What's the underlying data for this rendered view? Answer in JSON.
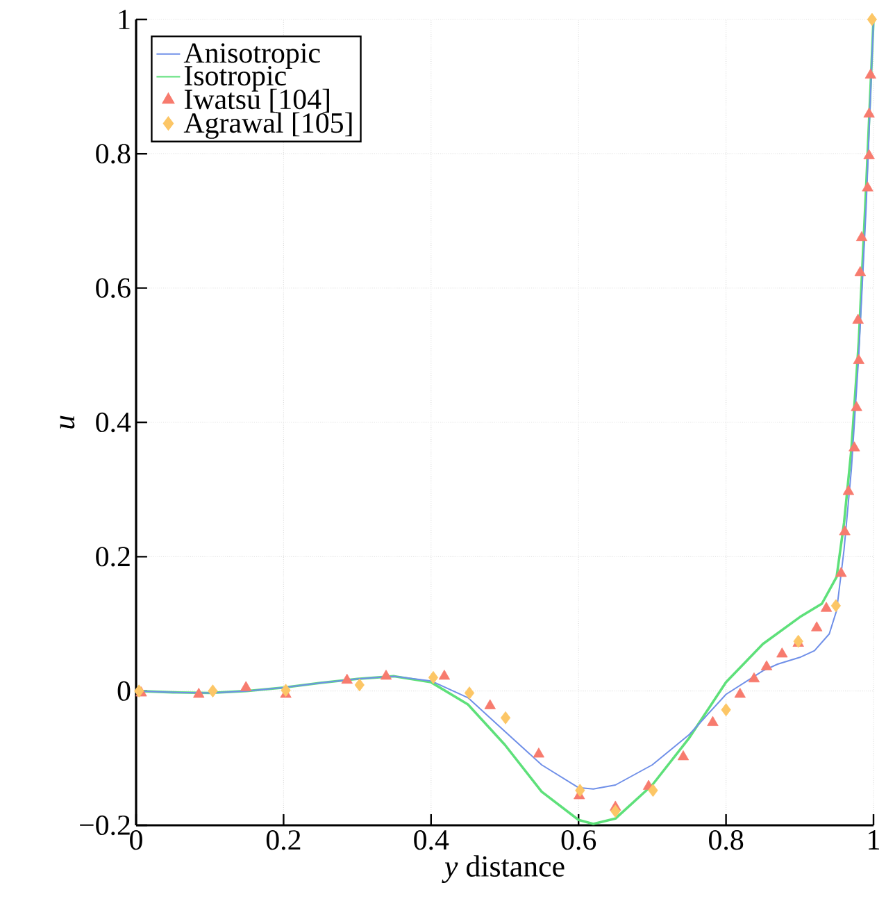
{
  "chart_data": {
    "type": "line",
    "xlabel": "*y* distance",
    "ylabel": "u",
    "xlim": [
      0,
      1
    ],
    "ylim": [
      -0.2,
      1
    ],
    "xticks": [
      0,
      0.2,
      0.4,
      0.6,
      0.8,
      1
    ],
    "yticks": [
      {
        "value": -0.2,
        "label": "−0.2"
      },
      0,
      0.2,
      0.4,
      0.6,
      0.8,
      1
    ],
    "grid": true,
    "legend": "top left",
    "series": [
      {
        "name": "Anisotropic",
        "color": "#6f8fe8",
        "marker": "none",
        "x": [
          0,
          0.05,
          0.1,
          0.15,
          0.2,
          0.25,
          0.3,
          0.35,
          0.4,
          0.45,
          0.5,
          0.55,
          0.6,
          0.62,
          0.65,
          0.7,
          0.75,
          0.8,
          0.85,
          0.87,
          0.9,
          0.92,
          0.94,
          0.95,
          0.96,
          0.97,
          0.98,
          0.99,
          1.0
        ],
        "values": [
          0,
          -0.002,
          -0.003,
          0,
          0.005,
          0.012,
          0.018,
          0.022,
          0.015,
          -0.01,
          -0.06,
          -0.11,
          -0.144,
          -0.146,
          -0.14,
          -0.11,
          -0.065,
          -0.005,
          0.03,
          0.04,
          0.05,
          0.06,
          0.085,
          0.12,
          0.21,
          0.33,
          0.5,
          0.72,
          1.0
        ]
      },
      {
        "name": "Isotropic",
        "color": "#5ee07a",
        "marker": "none",
        "x": [
          0,
          0.05,
          0.1,
          0.15,
          0.2,
          0.25,
          0.3,
          0.35,
          0.4,
          0.45,
          0.5,
          0.55,
          0.6,
          0.62,
          0.65,
          0.7,
          0.75,
          0.8,
          0.85,
          0.9,
          0.93,
          0.95,
          0.96,
          0.97,
          0.98,
          0.99,
          1.0
        ],
        "values": [
          0,
          -0.002,
          -0.003,
          0,
          0.005,
          0.012,
          0.018,
          0.022,
          0.013,
          -0.02,
          -0.08,
          -0.15,
          -0.192,
          -0.198,
          -0.19,
          -0.14,
          -0.07,
          0.013,
          0.07,
          0.11,
          0.13,
          0.17,
          0.25,
          0.36,
          0.52,
          0.75,
          1.0
        ]
      },
      {
        "name": "Iwatsu [104]",
        "type": "scatter",
        "color": "#f77b6e",
        "marker": "triangle",
        "x": [
          0.007,
          0.085,
          0.149,
          0.203,
          0.286,
          0.339,
          0.418,
          0.48,
          0.546,
          0.601,
          0.65,
          0.695,
          0.742,
          0.782,
          0.819,
          0.838,
          0.855,
          0.876,
          0.898,
          0.923,
          0.936,
          0.956,
          0.961,
          0.966,
          0.974,
          0.977,
          0.98,
          0.979,
          0.982,
          0.984,
          0.992,
          0.994,
          0.994,
          0.996
        ],
        "values": [
          -0.003,
          -0.005,
          0.005,
          -0.005,
          0.016,
          0.022,
          0.022,
          -0.022,
          -0.094,
          -0.156,
          -0.173,
          -0.142,
          -0.098,
          -0.047,
          -0.005,
          0.018,
          0.036,
          0.055,
          0.071,
          0.094,
          0.123,
          0.175,
          0.237,
          0.297,
          0.362,
          0.422,
          0.492,
          0.552,
          0.623,
          0.675,
          0.749,
          0.797,
          0.859,
          0.917
        ]
      },
      {
        "name": "Agrawal [105]",
        "type": "scatter",
        "color": "#fcc666",
        "marker": "diamond",
        "x": [
          0.004,
          0.104,
          0.203,
          0.303,
          0.403,
          0.452,
          0.501,
          0.602,
          0.65,
          0.701,
          0.8,
          0.898,
          0.949,
          0.998
        ],
        "values": [
          0,
          0,
          0.001,
          0.009,
          0.02,
          -0.003,
          -0.04,
          -0.148,
          -0.179,
          -0.148,
          -0.028,
          0.074,
          0.127,
          1.0
        ]
      }
    ]
  }
}
